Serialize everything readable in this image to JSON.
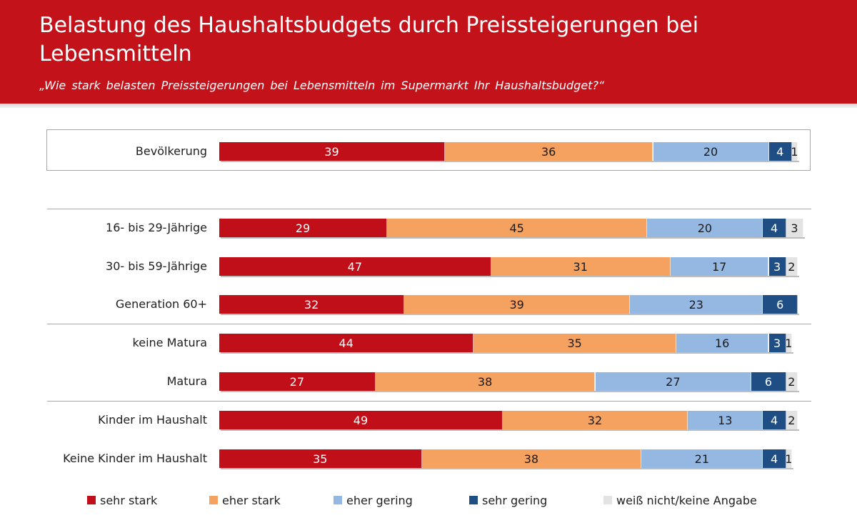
{
  "header": {
    "title": "Belastung des Haushaltsbudgets durch Preissteigerungen bei Lebensmitteln",
    "subtitle": "„Wie stark belasten Preissteigerungen bei Lebensmitteln im Supermarkt Ihr Haushaltsbudget?“"
  },
  "colors": {
    "header_red": "#c4121b",
    "sehr_stark": "#c00f18",
    "eher_stark": "#f5a261",
    "eher_gering": "#95b8e3",
    "sehr_gering": "#1f4e85",
    "weiss_nicht": "#e3e3e3"
  },
  "chart_data": {
    "type": "bar",
    "orientation": "horizontal",
    "stacked": true,
    "title": "Belastung des Haushaltsbudgets durch Preissteigerungen bei Lebensmitteln",
    "subtitle": "„Wie stark belasten Preissteigerungen bei Lebensmitteln im Supermarkt Ihr Haushaltsbudget?“",
    "xlabel": "",
    "ylabel": "",
    "xlim": [
      0,
      100
    ],
    "grid": false,
    "legend_position": "bottom",
    "categories": [
      "Bevölkerung",
      "16- bis 29-Jährige",
      "30- bis 59-Jährige",
      "Generation 60+",
      "keine Matura",
      "Matura",
      "Kinder im Haushalt",
      "Keine Kinder im Haushalt"
    ],
    "series": [
      {
        "name": "sehr stark",
        "color": "#c00f18",
        "values": [
          39,
          29,
          47,
          32,
          44,
          27,
          49,
          35
        ]
      },
      {
        "name": "eher stark",
        "color": "#f5a261",
        "values": [
          36,
          45,
          31,
          39,
          35,
          38,
          32,
          38
        ]
      },
      {
        "name": "eher gering",
        "color": "#95b8e3",
        "values": [
          20,
          20,
          17,
          23,
          16,
          27,
          13,
          21
        ]
      },
      {
        "name": "sehr gering",
        "color": "#1f4e85",
        "values": [
          4,
          4,
          3,
          6,
          3,
          6,
          4,
          4
        ]
      },
      {
        "name": "weiß nicht/keine Angabe",
        "color": "#e3e3e3",
        "values": [
          1,
          3,
          2,
          0,
          1,
          2,
          2,
          1
        ]
      }
    ]
  }
}
